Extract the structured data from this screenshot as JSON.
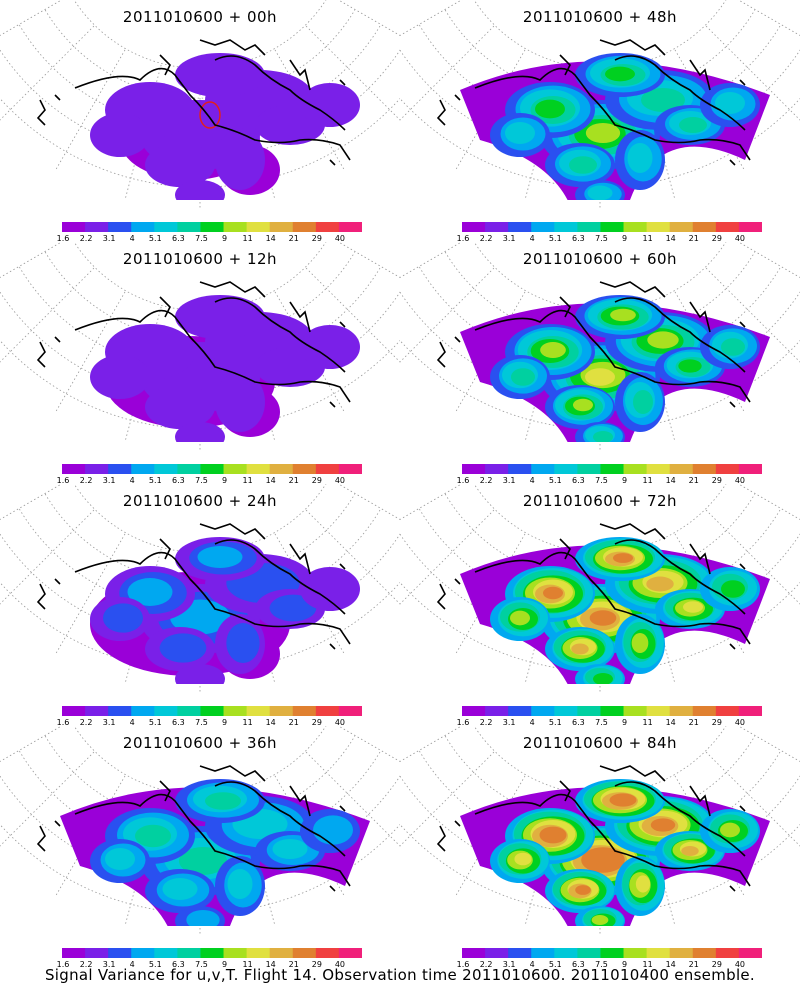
{
  "panels": [
    {
      "title": "2011010600 + 00h",
      "intensity": 0
    },
    {
      "title": "2011010600 + 48h",
      "intensity": 4
    },
    {
      "title": "2011010600 + 12h",
      "intensity": 1
    },
    {
      "title": "2011010600 + 60h",
      "intensity": 5
    },
    {
      "title": "2011010600 + 24h",
      "intensity": 2
    },
    {
      "title": "2011010600 + 72h",
      "intensity": 6
    },
    {
      "title": "2011010600 + 36h",
      "intensity": 3
    },
    {
      "title": "2011010600 + 84h",
      "intensity": 7
    }
  ],
  "colorbar": {
    "labels": [
      "1.6",
      "2.2",
      "3.1",
      "4",
      "5.1",
      "6.3",
      "7.5",
      "9",
      "11",
      "14",
      "21",
      "29",
      "40"
    ],
    "colors": [
      "#9a00d8",
      "#7a20e8",
      "#2a50f0",
      "#00a8f0",
      "#00c8d8",
      "#00d0a0",
      "#00d020",
      "#a8e020",
      "#e0e040",
      "#e0b040",
      "#e08030",
      "#f04040",
      "#f0207a"
    ]
  },
  "caption": "Signal Variance for u,v,T. Flight 14. Observation time 2011010600. 2011010400 ensemble."
}
